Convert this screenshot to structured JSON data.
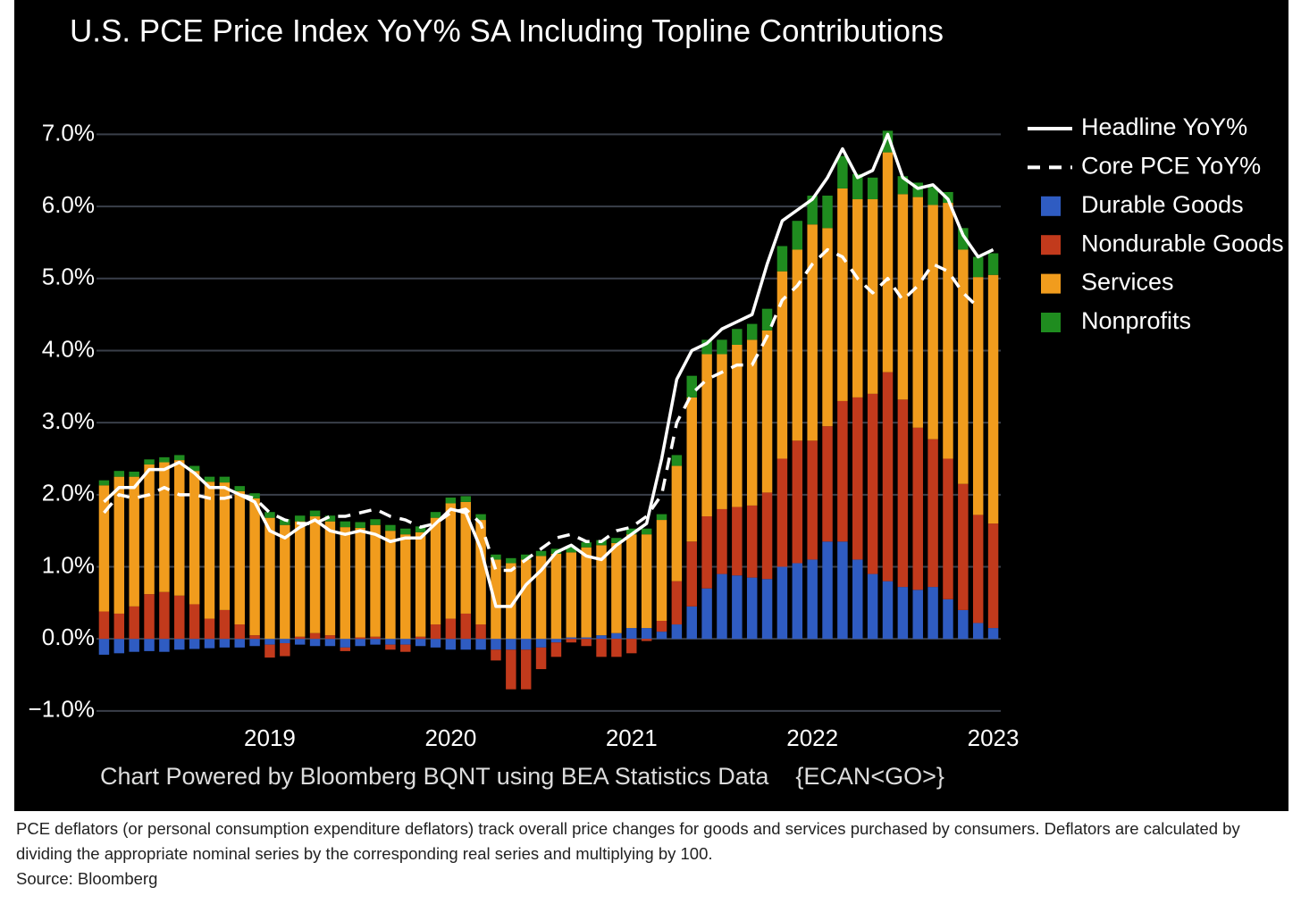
{
  "chart_data": {
    "type": "bar",
    "title": "U.S. PCE Price Index YoY% SA Including Topline Contributions",
    "source_note": "Chart Powered by Bloomberg BQNT using BEA Statistics Data    {ECAN<GO>}",
    "categories": [
      null,
      null,
      null,
      null,
      null,
      null,
      null,
      null,
      null,
      null,
      null,
      "2019",
      null,
      null,
      null,
      null,
      null,
      null,
      null,
      null,
      null,
      null,
      null,
      "2020",
      null,
      null,
      null,
      null,
      null,
      null,
      null,
      null,
      null,
      null,
      null,
      "2021",
      null,
      null,
      null,
      null,
      null,
      null,
      null,
      null,
      null,
      null,
      null,
      "2022",
      null,
      null,
      null,
      null,
      null,
      null,
      null,
      null,
      null,
      null,
      null,
      "2023"
    ],
    "ylim": [
      -1.2,
      7.6
    ],
    "yticks": [
      {
        "value": -1,
        "label": "−1.0%"
      },
      {
        "value": 0,
        "label": "0.0%"
      },
      {
        "value": 1,
        "label": "1.0%"
      },
      {
        "value": 2,
        "label": "2.0%"
      },
      {
        "value": 3,
        "label": "3.0%"
      },
      {
        "value": 4,
        "label": "4.0%"
      },
      {
        "value": 5,
        "label": "5.0%"
      },
      {
        "value": 6,
        "label": "6.0%"
      },
      {
        "value": 7,
        "label": "7.0%"
      }
    ],
    "grid": true,
    "stacked": true,
    "legend": "right",
    "series": [
      {
        "name": "Headline YoY%",
        "kind": "line",
        "dash": false,
        "color": "#ffffff",
        "values": [
          1.9,
          2.1,
          2.1,
          2.35,
          2.35,
          2.45,
          2.3,
          2.1,
          2.1,
          2.0,
          1.9,
          1.5,
          1.4,
          1.55,
          1.65,
          1.5,
          1.45,
          1.5,
          1.45,
          1.35,
          1.4,
          1.4,
          1.6,
          1.8,
          1.75,
          1.25,
          0.45,
          0.45,
          0.75,
          0.95,
          1.2,
          1.3,
          1.15,
          1.1,
          1.3,
          1.45,
          1.6,
          2.5,
          3.6,
          4.0,
          4.1,
          4.3,
          4.4,
          4.5,
          5.2,
          5.8,
          5.95,
          6.1,
          6.4,
          6.8,
          6.4,
          6.5,
          7.0,
          6.4,
          6.25,
          6.3,
          6.1,
          5.6,
          5.3,
          5.4
        ]
      },
      {
        "name": "Core PCE YoY%",
        "kind": "line",
        "dash": true,
        "color": "#ffffff",
        "values": [
          1.75,
          2.0,
          1.95,
          2.0,
          2.1,
          2.0,
          2.0,
          1.95,
          1.95,
          2.0,
          1.95,
          1.75,
          1.65,
          1.6,
          1.6,
          1.7,
          1.7,
          1.75,
          1.8,
          1.7,
          1.65,
          1.55,
          1.6,
          1.75,
          1.8,
          1.6,
          0.95,
          0.95,
          1.1,
          1.25,
          1.4,
          1.45,
          1.35,
          1.35,
          1.5,
          1.55,
          1.7,
          2.0,
          3.0,
          3.4,
          3.6,
          3.7,
          3.8,
          3.8,
          4.2,
          4.7,
          4.9,
          5.2,
          5.4,
          5.3,
          5.0,
          4.8,
          5.0,
          4.7,
          4.9,
          5.2,
          5.1,
          4.8,
          4.6,
          null
        ]
      },
      {
        "name": "Durable Goods",
        "kind": "bar",
        "color": "#2f5cc2",
        "values": [
          -0.22,
          -0.2,
          -0.18,
          -0.17,
          -0.18,
          -0.15,
          -0.14,
          -0.13,
          -0.12,
          -0.12,
          -0.1,
          -0.08,
          -0.06,
          -0.08,
          -0.1,
          -0.1,
          -0.12,
          -0.1,
          -0.08,
          -0.08,
          -0.08,
          -0.1,
          -0.12,
          -0.15,
          -0.15,
          -0.15,
          -0.15,
          -0.15,
          -0.15,
          -0.12,
          -0.05,
          0.02,
          0.02,
          0.05,
          0.08,
          0.15,
          0.15,
          0.1,
          0.2,
          0.45,
          0.7,
          0.9,
          0.88,
          0.85,
          0.83,
          1.0,
          1.05,
          1.1,
          1.35,
          1.35,
          1.1,
          0.9,
          0.8,
          0.72,
          0.68,
          0.72,
          0.55,
          0.4,
          0.22,
          0.15
        ]
      },
      {
        "name": "Nondurable Goods",
        "kind": "bar",
        "color": "#c23a1c",
        "values": [
          0.38,
          0.35,
          0.45,
          0.62,
          0.65,
          0.6,
          0.48,
          0.28,
          0.4,
          0.2,
          0.05,
          -0.18,
          -0.18,
          0.03,
          0.08,
          0.05,
          -0.05,
          0.02,
          0.03,
          -0.07,
          -0.1,
          0.03,
          0.2,
          0.28,
          0.35,
          0.2,
          -0.15,
          -0.55,
          -0.55,
          -0.3,
          -0.2,
          -0.05,
          -0.1,
          -0.25,
          -0.25,
          -0.2,
          -0.03,
          0.15,
          0.6,
          0.9,
          1.0,
          0.9,
          0.95,
          1.0,
          1.2,
          1.5,
          1.7,
          1.65,
          1.6,
          1.95,
          2.25,
          2.5,
          2.9,
          2.6,
          2.25,
          2.05,
          1.95,
          1.75,
          1.5,
          1.45
        ]
      },
      {
        "name": "Services",
        "kind": "bar",
        "color": "#f19c1d",
        "values": [
          1.75,
          1.9,
          1.8,
          1.8,
          1.8,
          1.88,
          1.85,
          1.9,
          1.77,
          1.85,
          1.9,
          1.68,
          1.58,
          1.6,
          1.62,
          1.58,
          1.55,
          1.52,
          1.55,
          1.5,
          1.45,
          1.45,
          1.48,
          1.6,
          1.55,
          1.45,
          1.1,
          1.05,
          1.1,
          1.15,
          1.18,
          1.18,
          1.25,
          1.25,
          1.25,
          1.3,
          1.3,
          1.4,
          1.6,
          2.0,
          2.25,
          2.15,
          2.25,
          2.3,
          2.25,
          2.6,
          2.65,
          3.0,
          2.75,
          2.95,
          2.75,
          2.7,
          3.05,
          2.85,
          3.2,
          3.25,
          3.55,
          3.25,
          3.3,
          3.45
        ]
      },
      {
        "name": "Nonprofits",
        "kind": "bar",
        "color": "#1f8c1f",
        "values": [
          0.07,
          0.08,
          0.07,
          0.07,
          0.07,
          0.07,
          0.07,
          0.07,
          0.08,
          0.07,
          0.07,
          0.08,
          0.08,
          0.08,
          0.08,
          0.08,
          0.08,
          0.08,
          0.08,
          0.08,
          0.08,
          0.08,
          0.08,
          0.08,
          0.08,
          0.08,
          0.07,
          0.07,
          0.07,
          0.07,
          0.07,
          0.07,
          0.07,
          0.07,
          0.07,
          0.08,
          0.08,
          0.08,
          0.15,
          0.3,
          0.2,
          0.2,
          0.22,
          0.22,
          0.3,
          0.35,
          0.4,
          0.4,
          0.45,
          0.45,
          0.35,
          0.3,
          0.3,
          0.25,
          0.2,
          0.25,
          0.15,
          0.3,
          0.28,
          0.3
        ]
      }
    ]
  },
  "caption": "PCE deflators (or personal consumption expenditure deflators) track overall price changes for goods and services purchased by consumers. Deflators are calculated by dividing the appropriate nominal series by the corresponding real series and multiplying by 100.",
  "source": "Source: Bloomberg"
}
